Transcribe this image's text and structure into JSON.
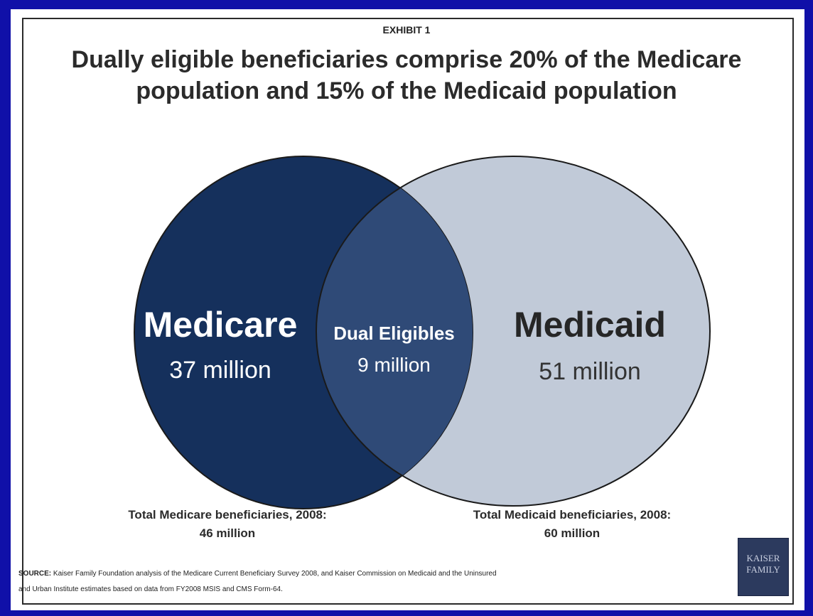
{
  "exhibit_label": "EXHIBIT 1",
  "title_line1": "Dually eligible beneficiaries comprise 20% of the Medicare",
  "title_line2": "population and 15% of the Medicaid population",
  "colors": {
    "medicare_fill": "#15305c",
    "medicaid_fill": "#c1cad8",
    "overlap_fill": "#2f4a77",
    "background": "#1010a8"
  },
  "venn": {
    "medicare": {
      "name": "Medicare",
      "value": "37 million"
    },
    "dual": {
      "name": "Dual Eligibles",
      "value": "9 million"
    },
    "medicaid": {
      "name": "Medicaid",
      "value": "51 million"
    }
  },
  "totals": {
    "medicare_label": "Total Medicare beneficiaries, 2008:",
    "medicare_value": "46 million",
    "medicaid_label": "Total Medicaid beneficiaries, 2008:",
    "medicaid_value": "60 million"
  },
  "source": {
    "label": "SOURCE:",
    "line1": "Kaiser Family Foundation analysis of the Medicare Current Beneficiary Survey 2008, and Kaiser Commission on Medicaid and the Uninsured",
    "line2": "and Urban Institute estimates based on data from FY2008 MSIS and CMS Form-64."
  },
  "logo": {
    "line1": "KAISER",
    "line2": "FAMILY"
  }
}
